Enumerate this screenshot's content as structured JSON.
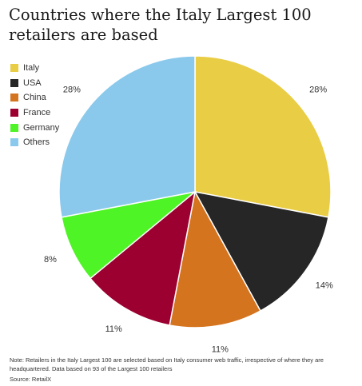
{
  "chart_data": {
    "type": "pie",
    "title": "Countries where the Italy Largest 100 retailers are based",
    "legend_position": "top-left",
    "slices": [
      {
        "name": "Italy",
        "value": 28,
        "label": "28%",
        "color": "#e9cd45"
      },
      {
        "name": "USA",
        "value": 14,
        "label": "14%",
        "color": "#262626"
      },
      {
        "name": "China",
        "value": 11,
        "label": "11%",
        "color": "#d4741f"
      },
      {
        "name": "France",
        "value": 11,
        "label": "11%",
        "color": "#9b0030"
      },
      {
        "name": "Germany",
        "value": 8,
        "label": "8%",
        "color": "#4ef425"
      },
      {
        "name": "Others",
        "value": 28,
        "label": "28%",
        "color": "#8ac9ec"
      }
    ]
  },
  "footer": {
    "note": "Note: Retailers in the Italy Largest 100 are selected based on Italy consumer web traffic, irrespective of where they are headquartered. Data based on 93 of the Largest 100 retailers",
    "source": "Source: RetailX"
  }
}
